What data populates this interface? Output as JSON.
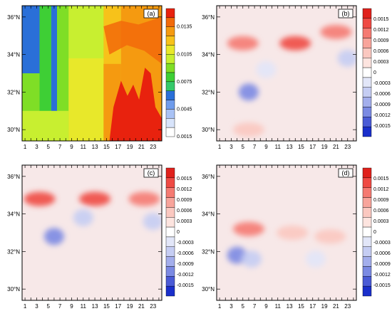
{
  "chart_data": [
    {
      "type": "heatmap",
      "panel_label": "(a)",
      "x_tick_labels": [
        "1",
        "3",
        "5",
        "7",
        "9",
        "11",
        "13",
        "15",
        "17",
        "19",
        "21",
        "23"
      ],
      "y_tick_labels": [
        "36°N",
        "34°N",
        "32°N",
        "30°N"
      ],
      "y_tick_values": [
        36,
        34,
        32,
        30
      ],
      "ylim": [
        29.4,
        36.6
      ],
      "xlim": [
        0.5,
        24.5
      ],
      "colorbar_labels": [
        "0.0135",
        "0.0105",
        "0.0075",
        "0.0045",
        "0.0015"
      ],
      "colorbar_colors": [
        "#e8220e",
        "#f26a0a",
        "#f59a10",
        "#f7c21a",
        "#e8e82a",
        "#c8ef30",
        "#7fde26",
        "#3ecf35",
        "#35c96a",
        "#2a6fd8",
        "#6f9cec",
        "#a9c2f5",
        "#d8e4fb",
        "#ffffff"
      ],
      "fields": [
        {
          "x": 1.5,
          "y": 34.5,
          "value": 0.006
        },
        {
          "x": 5.5,
          "y": 33.5,
          "value": 0.0045
        },
        {
          "x": 3.5,
          "y": 31.5,
          "value": 0.0085
        },
        {
          "x": 10.5,
          "y": 33.0,
          "value": 0.0105
        },
        {
          "x": 16.5,
          "y": 33.5,
          "value": 0.0125
        },
        {
          "x": 20.0,
          "y": 31.0,
          "value": 0.015
        },
        {
          "x": 23.0,
          "y": 35.5,
          "value": 0.01
        }
      ]
    },
    {
      "type": "heatmap",
      "panel_label": "(b)",
      "x_tick_labels": [
        "1",
        "3",
        "5",
        "7",
        "9",
        "11",
        "13",
        "15",
        "17",
        "19",
        "21",
        "23"
      ],
      "y_tick_labels": [
        "36°N",
        "34°N",
        "32°N",
        "30°N"
      ],
      "y_tick_values": [
        36,
        34,
        32,
        30
      ],
      "ylim": [
        29.4,
        36.6
      ],
      "xlim": [
        0.5,
        24.5
      ],
      "colorbar_labels": [
        "0.0015",
        "0.0012",
        "0.0009",
        "0.0006",
        "0.0003",
        "0",
        "-0.0003",
        "-0.0006",
        "-0.0009",
        "-0.0012",
        "-0.0015"
      ],
      "fields": [
        {
          "x": 5.0,
          "y": 34.6,
          "value": 0.0009
        },
        {
          "x": 14.0,
          "y": 34.6,
          "value": 0.0012
        },
        {
          "x": 21.0,
          "y": 35.2,
          "value": 0.0009
        },
        {
          "x": 6.0,
          "y": 32.0,
          "value": -0.0009
        },
        {
          "x": 9.0,
          "y": 33.2,
          "value": -0.0003
        },
        {
          "x": 23.0,
          "y": 33.8,
          "value": -0.0006
        },
        {
          "x": 6.0,
          "y": 30.0,
          "value": 0.0006
        }
      ]
    },
    {
      "type": "heatmap",
      "panel_label": "(c)",
      "x_tick_labels": [
        "1",
        "3",
        "5",
        "7",
        "9",
        "11",
        "13",
        "15",
        "17",
        "19",
        "21",
        "23"
      ],
      "y_tick_labels": [
        "36°N",
        "34°N",
        "32°N",
        "30°N"
      ],
      "y_tick_values": [
        36,
        34,
        32,
        30
      ],
      "ylim": [
        29.4,
        36.6
      ],
      "xlim": [
        0.5,
        24.5
      ],
      "colorbar_labels": [
        "0.0015",
        "0.0012",
        "0.0009",
        "0.0006",
        "0.0003",
        "0",
        "-0.0003",
        "-0.0006",
        "-0.0009",
        "-0.0012",
        "-0.0015"
      ],
      "fields": [
        {
          "x": 3.5,
          "y": 34.8,
          "value": 0.0012
        },
        {
          "x": 13.0,
          "y": 34.8,
          "value": 0.0012
        },
        {
          "x": 21.5,
          "y": 34.8,
          "value": 0.0009
        },
        {
          "x": 6.0,
          "y": 32.8,
          "value": -0.0009
        },
        {
          "x": 11.0,
          "y": 33.8,
          "value": -0.0006
        },
        {
          "x": 23.0,
          "y": 33.6,
          "value": -0.0006
        }
      ]
    },
    {
      "type": "heatmap",
      "panel_label": "(d)",
      "x_tick_labels": [
        "1",
        "3",
        "5",
        "7",
        "9",
        "11",
        "13",
        "15",
        "17",
        "19",
        "21",
        "23"
      ],
      "y_tick_labels": [
        "36°N",
        "34°N",
        "32°N",
        "30°N"
      ],
      "y_tick_values": [
        36,
        34,
        32,
        30
      ],
      "ylim": [
        29.4,
        36.6
      ],
      "xlim": [
        0.5,
        24.5
      ],
      "colorbar_labels": [
        "0.0015",
        "0.0012",
        "0.0009",
        "0.0006",
        "0.0003",
        "0",
        "-0.0003",
        "-0.0006",
        "-0.0009",
        "-0.0012",
        "-0.0015"
      ],
      "fields": [
        {
          "x": 6.0,
          "y": 33.2,
          "value": 0.0009
        },
        {
          "x": 13.5,
          "y": 33.0,
          "value": 0.0006
        },
        {
          "x": 20.0,
          "y": 32.8,
          "value": 0.0006
        },
        {
          "x": 4.0,
          "y": 31.8,
          "value": -0.0009
        },
        {
          "x": 6.5,
          "y": 31.6,
          "value": -0.0006
        },
        {
          "x": 17.5,
          "y": 31.6,
          "value": -0.0003
        }
      ]
    }
  ],
  "colors": {
    "divergent": [
      "#e0211c",
      "#ef4a44",
      "#f57a72",
      "#f8a49b",
      "#fbc8c0",
      "#fde4df",
      "#ffffff",
      "#e2e6f8",
      "#c5cdf3",
      "#a3aeec",
      "#7b8ae3",
      "#4a5bd6",
      "#1a2fcb"
    ],
    "zero_tint": "#f7e8e8",
    "frame": "#000000"
  }
}
